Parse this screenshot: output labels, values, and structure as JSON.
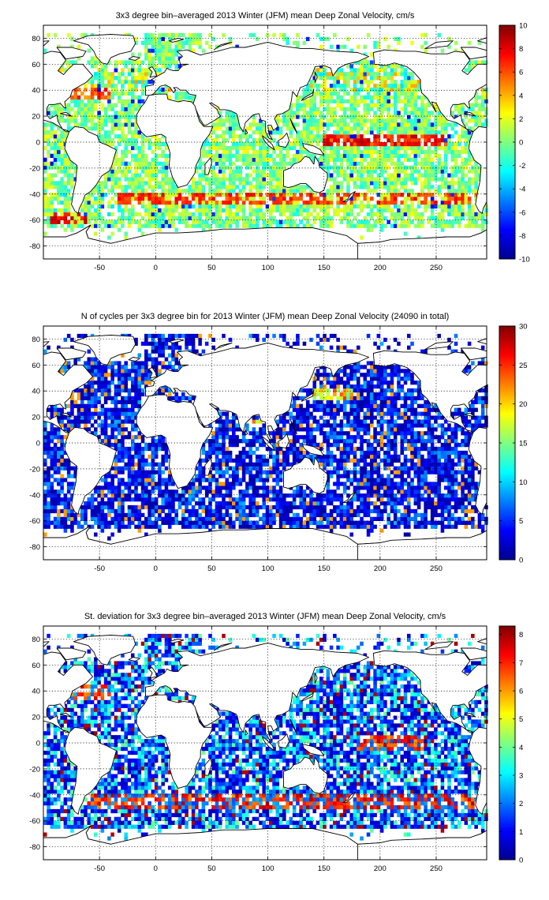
{
  "chart_data": [
    {
      "type": "heatmap",
      "title": "3x3 degree bin–averaged 2013 Winter (JFM) mean Deep Zonal Velocity, cm/s",
      "xticks": [
        -50,
        0,
        50,
        100,
        150,
        200,
        250
      ],
      "yticks": [
        80,
        60,
        40,
        20,
        0,
        -20,
        -40,
        -60,
        -80
      ],
      "xlim": [
        -100,
        295
      ],
      "ylim": [
        -90,
        90
      ],
      "bin_size_deg": 3,
      "colorbar": {
        "min": -10,
        "max": 10,
        "ticks": [
          10,
          8,
          6,
          4,
          2,
          0,
          -2,
          -4,
          -6,
          -8,
          -10
        ]
      },
      "colormap": "jet",
      "grid": "dotted",
      "bands": [
        {
          "lat": -44,
          "lon_from": -35,
          "lon_to": 290,
          "value": 7,
          "note": "eastward Antarctic Circumpolar Current band"
        },
        {
          "lat": -58,
          "lon_from": -95,
          "lon_to": -60,
          "value": 8
        },
        {
          "lat": 1,
          "lon_from": 150,
          "lon_to": 260,
          "value": 7,
          "note": "equatorial Pacific"
        },
        {
          "lat": 38,
          "lon_from": -75,
          "lon_to": -40,
          "value": 6
        }
      ]
    },
    {
      "type": "heatmap",
      "title": "N of cycles per 3x3 degree bin for 2013 Winter (JFM) mean Deep Zonal Velocity (24090 in total)",
      "xticks": [
        -50,
        0,
        50,
        100,
        150,
        200,
        250
      ],
      "yticks": [
        80,
        60,
        40,
        20,
        0,
        -20,
        -40,
        -60,
        -80
      ],
      "xlim": [
        -100,
        295
      ],
      "ylim": [
        -90,
        90
      ],
      "bin_size_deg": 3,
      "total_cycles": 24090,
      "colorbar": {
        "min": 0,
        "max": 30,
        "ticks": [
          30,
          25,
          20,
          15,
          10,
          5,
          0
        ]
      },
      "colormap": "jet",
      "grid": "dotted",
      "hotspots": [
        {
          "lat": 37,
          "lon_from": 140,
          "lon_to": 175,
          "value": 22,
          "note": "Kuroshio region"
        },
        {
          "lat": 15,
          "lon_from": 85,
          "lon_to": 95,
          "value": 20
        }
      ]
    },
    {
      "type": "heatmap",
      "title": "St. deviation for 3x3 degree bin–averaged 2013 Winter (JFM) mean Deep Zonal Velocity, cm/s",
      "xticks": [
        -50,
        0,
        50,
        100,
        150,
        200,
        250
      ],
      "yticks": [
        80,
        60,
        40,
        20,
        0,
        -20,
        -40,
        -60,
        -80
      ],
      "xlim": [
        -100,
        295
      ],
      "ylim": [
        -90,
        90
      ],
      "bin_size_deg": 3,
      "colorbar": {
        "min": 0,
        "max": 8.3,
        "ticks": [
          8,
          7,
          6,
          5,
          4,
          3,
          2,
          1,
          0
        ]
      },
      "colormap": "jet",
      "grid": "dotted",
      "bands": [
        {
          "lat": -46,
          "lon_from": -60,
          "lon_to": 290,
          "value": 6.5,
          "note": "Antarctic Circumpolar Current"
        },
        {
          "lat": 1,
          "lon_from": 180,
          "lon_to": 240,
          "value": 6.5
        },
        {
          "lat": 38,
          "lon_from": -75,
          "lon_to": -40,
          "value": 6.5
        }
      ]
    }
  ]
}
